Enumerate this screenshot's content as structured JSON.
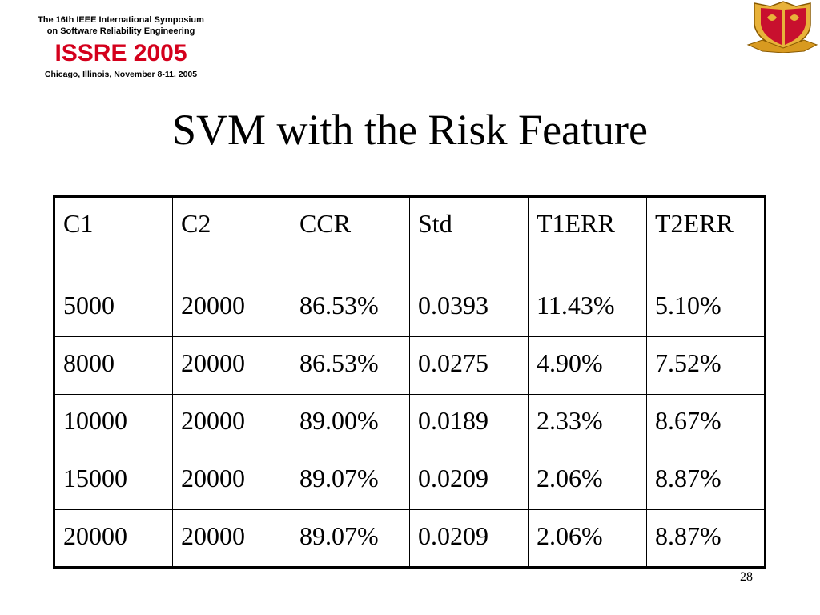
{
  "conference": {
    "line1": "The 16th IEEE International Symposium",
    "line2": "on Software Reliability Engineering",
    "acronym": "ISSRE 2005",
    "location": "Chicago, Illinois, November 8-11, 2005"
  },
  "logo_icon": "university-crest-icon",
  "colors": {
    "accent": "#d4001c",
    "crest_gold": "#e8b23a",
    "crest_red": "#c8102e"
  },
  "slide": {
    "title": "SVM with the Risk Feature",
    "page_number": "28"
  },
  "table": {
    "headers": [
      "C1",
      "C2",
      "CCR",
      "Std",
      "T1ERR",
      "T2ERR"
    ],
    "rows": [
      [
        "5000",
        "20000",
        "86.53%",
        "0.0393",
        "11.43%",
        "5.10%"
      ],
      [
        "8000",
        "20000",
        "86.53%",
        "0.0275",
        "4.90%",
        "7.52%"
      ],
      [
        "10000",
        "20000",
        "89.00%",
        "0.0189",
        "2.33%",
        "8.67%"
      ],
      [
        "15000",
        "20000",
        "89.07%",
        "0.0209",
        "2.06%",
        "8.87%"
      ],
      [
        "20000",
        "20000",
        "89.07%",
        "0.0209",
        "2.06%",
        "8.87%"
      ]
    ]
  }
}
